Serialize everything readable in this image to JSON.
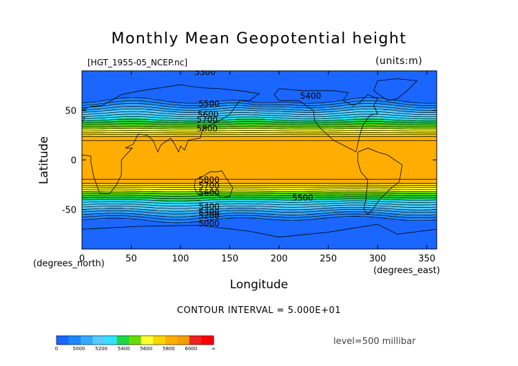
{
  "header": {
    "title": "Monthly Mean Geopotential height",
    "file_label": "[HGT_1955-05_NCEP.nc]",
    "units_label": "(units:m)"
  },
  "axes": {
    "ylabel": "Latitude",
    "xlabel": "Longitude",
    "y_unit": "(degrees_north)",
    "x_unit": "(degrees_east)"
  },
  "footer": {
    "contour_interval": "CONTOUR INTERVAL = 5.000E+01",
    "level": "level=500 millibar"
  },
  "chart_data": {
    "type": "heatmap",
    "title": "Monthly Mean Geopotential height",
    "xlabel": "Longitude",
    "ylabel": "Latitude",
    "xlim": [
      0,
      360
    ],
    "ylim": [
      -90,
      90
    ],
    "x_ticks": [
      0,
      50,
      100,
      150,
      200,
      250,
      300,
      350
    ],
    "y_ticks": [
      -50,
      0,
      50
    ],
    "variable_units": "m",
    "level": "500 millibar",
    "contour_interval": 50,
    "color_scale": [
      {
        "range": [
          0,
          5000
        ],
        "color": "#1a66ff"
      },
      {
        "range": [
          5000,
          5100
        ],
        "color": "#1f86ff"
      },
      {
        "range": [
          5100,
          5200
        ],
        "color": "#33aaff"
      },
      {
        "range": [
          5200,
          5300
        ],
        "color": "#55ccff"
      },
      {
        "range": [
          5300,
          5400
        ],
        "color": "#33e0ff"
      },
      {
        "range": [
          5400,
          5500
        ],
        "color": "#1ed64a"
      },
      {
        "range": [
          5500,
          5600
        ],
        "color": "#66dd00"
      },
      {
        "range": [
          5600,
          5700
        ],
        "color": "#ffff33"
      },
      {
        "range": [
          5700,
          5800
        ],
        "color": "#f5d800"
      },
      {
        "range": [
          5800,
          5900
        ],
        "color": "#ffae00"
      },
      {
        "range": [
          5900,
          6000
        ],
        "color": "#f0a000"
      },
      {
        "range": [
          6000,
          6100
        ],
        "color": "#ee2222"
      },
      {
        "range": [
          6100,
          9999
        ],
        "color": "#ff0000"
      }
    ],
    "colorbar_labels": [
      "0",
      "5000",
      "5200",
      "5400",
      "5600",
      "5800",
      "6000",
      "∞"
    ],
    "contour_labels": [
      {
        "text": "5300",
        "lon": 125,
        "lat": 86
      },
      {
        "text": "5400",
        "lon": 232,
        "lat": 62
      },
      {
        "text": "5500",
        "lon": 129,
        "lat": 54
      },
      {
        "text": "5600",
        "lon": 128,
        "lat": 43
      },
      {
        "text": "5700",
        "lon": 127,
        "lat": 38
      },
      {
        "text": "5800",
        "lon": 127,
        "lat": 29
      },
      {
        "text": "5800",
        "lon": 129,
        "lat": -23
      },
      {
        "text": "5700",
        "lon": 129,
        "lat": -29
      },
      {
        "text": "5600",
        "lon": 129,
        "lat": -36
      },
      {
        "text": "5500",
        "lon": 224,
        "lat": -41
      },
      {
        "text": "5400",
        "lon": 129,
        "lat": -50
      },
      {
        "text": "5300",
        "lon": 129,
        "lat": -56
      },
      {
        "text": "5200",
        "lon": 129,
        "lat": -59
      },
      {
        "text": "5000",
        "lon": 129,
        "lat": -67
      }
    ]
  }
}
